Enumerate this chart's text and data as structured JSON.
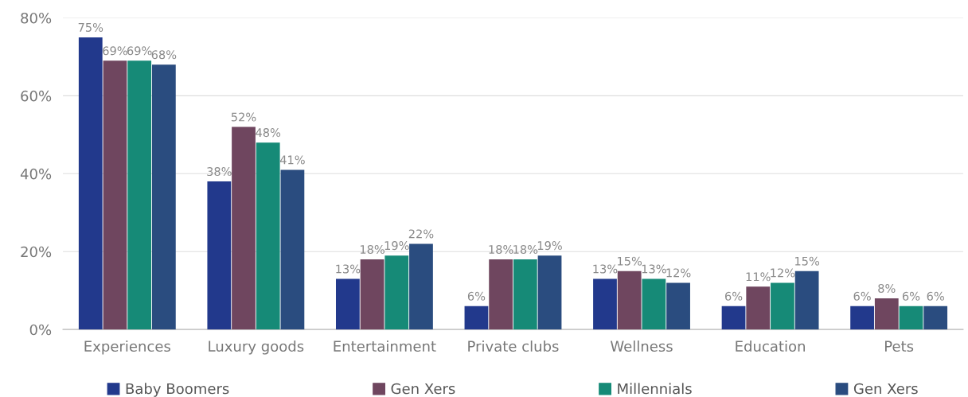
{
  "chart_data": {
    "type": "bar",
    "categories": [
      "Experiences",
      "Luxury goods",
      "Entertainment",
      "Private clubs",
      "Wellness",
      "Education",
      "Pets"
    ],
    "series": [
      {
        "name": "Baby Boomers",
        "color": "#22398c",
        "values": [
          75,
          38,
          13,
          6,
          13,
          6,
          6
        ],
        "value_labels": [
          "75%",
          "38%",
          "13%",
          "6%",
          "13%",
          "6%",
          "6%"
        ]
      },
      {
        "name": "Gen Xers",
        "color": "#6f465f",
        "values": [
          69,
          52,
          18,
          18,
          15,
          11,
          8
        ],
        "value_labels": [
          "69%",
          "52%",
          "18%",
          "18%",
          "15%",
          "11%",
          "8%"
        ]
      },
      {
        "name": "Millennials",
        "color": "#168a77",
        "values": [
          69,
          48,
          19,
          18,
          13,
          12,
          6
        ],
        "value_labels": [
          "69%",
          "48%",
          "19%",
          "18%",
          "13%",
          "12%",
          "6%"
        ]
      },
      {
        "name": "Gen Xers",
        "color": "#2a4c7f",
        "values": [
          68,
          41,
          22,
          19,
          12,
          15,
          6
        ],
        "value_labels": [
          "68%",
          "41%",
          "22%",
          "19%",
          "12%",
          "15%",
          "6%"
        ]
      }
    ],
    "ylim": [
      0,
      80
    ],
    "yticks": [
      {
        "value": 0,
        "label": "0%"
      },
      {
        "value": 20,
        "label": "20%"
      },
      {
        "value": 40,
        "label": "40%"
      },
      {
        "value": 60,
        "label": "60%"
      },
      {
        "value": 80,
        "label": "80%"
      }
    ],
    "grid": "y",
    "legend": "bottom"
  }
}
